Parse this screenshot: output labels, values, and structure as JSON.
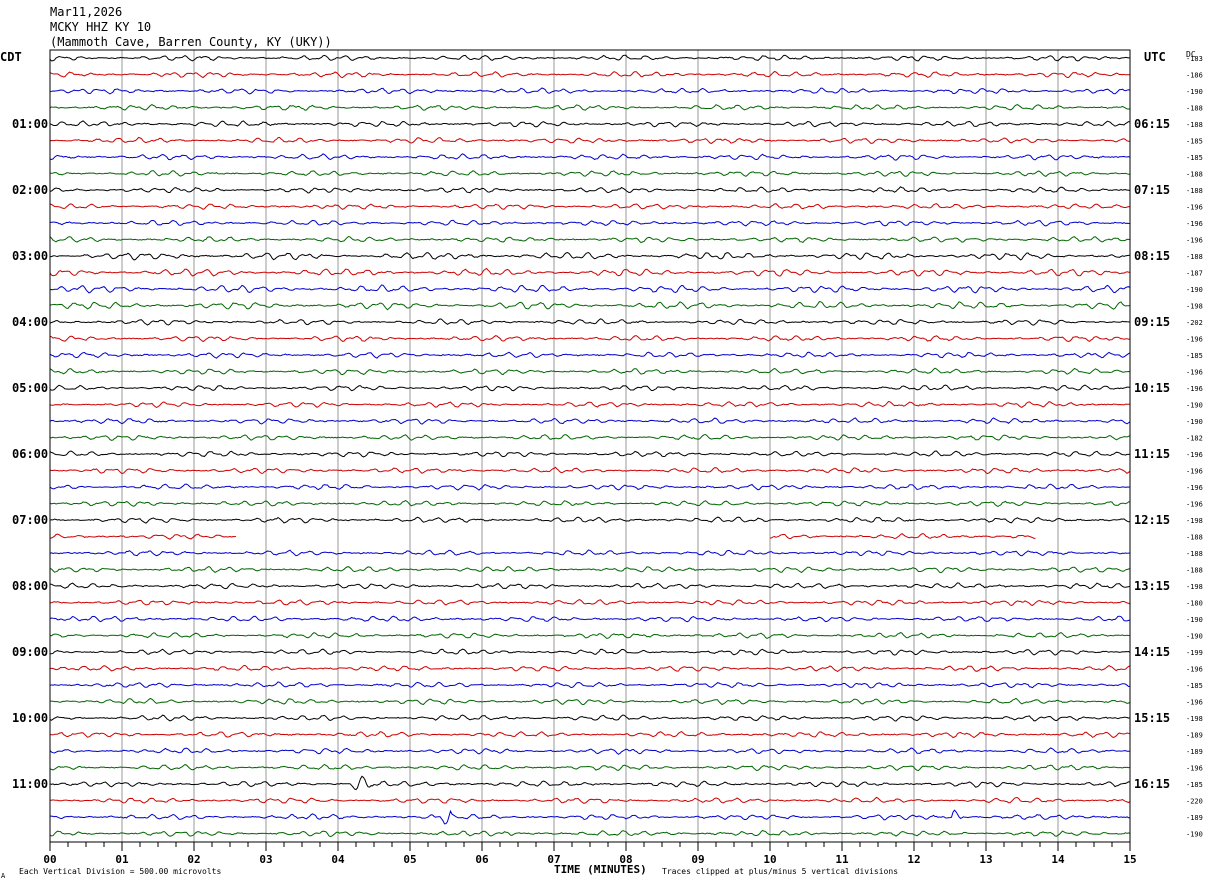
{
  "header": {
    "date": "Mar11,2026",
    "station": "MCKY HHZ KY 10",
    "location": "(Mammoth Cave, Barren County, KY (UKY))"
  },
  "left_tz": "CDT",
  "right_tz": "UTC",
  "dc_label": "DC",
  "footer": {
    "scale": "Each Vertical Division =  500.00 microvolts",
    "xlabel": "TIME (MINUTES)",
    "clip_note": "Traces clipped at plus/minus 5 vertical divisions",
    "corner_mark": "A"
  },
  "colors": {
    "trace": [
      "#000000",
      "#cc0000",
      "#0000cc",
      "#006600"
    ],
    "grid": "#999999",
    "frame": "#000000"
  },
  "chart_data": {
    "type": "line",
    "title": "",
    "xlabel": "TIME (MINUTES)",
    "xlim": [
      0,
      15
    ],
    "x_ticks": [
      "00",
      "01",
      "02",
      "03",
      "04",
      "05",
      "06",
      "07",
      "08",
      "09",
      "10",
      "11",
      "12",
      "13",
      "14",
      "15"
    ],
    "traces_per_hour": 4,
    "trace_count": 48,
    "left_hour_labels": [
      "01:00",
      "02:00",
      "03:00",
      "04:00",
      "05:00",
      "06:00",
      "07:00",
      "08:00",
      "09:00",
      "10:00",
      "11:00"
    ],
    "right_hour_labels": [
      "06:15",
      "07:15",
      "08:15",
      "09:15",
      "10:15",
      "11:15",
      "12:15",
      "13:15",
      "14:15",
      "15:15",
      "16:15"
    ],
    "dc_values": [
      "-183",
      "-186",
      "-190",
      "-188",
      "-188",
      "-185",
      "-185",
      "-188",
      "-188",
      "-196",
      "-196",
      "-196",
      "-188",
      "-187",
      "-190",
      "-198",
      "-202",
      "-196",
      "-185",
      "-196",
      "-196",
      "-190",
      "-190",
      "-182",
      "-196",
      "-196",
      "-196",
      "-196",
      "-198",
      "-188",
      "-188",
      "-188",
      "-198",
      "-180",
      "-190",
      "-190",
      "-199",
      "-196",
      "-185",
      "-196",
      "-198",
      "-189",
      "-189",
      "-196",
      "-185",
      "-220",
      "-189",
      "-190"
    ],
    "gaps": [
      {
        "trace": 29,
        "x_start": 2.6,
        "x_end": 10.0
      },
      {
        "trace": 29,
        "x_start": 13.7,
        "x_end": 15.0
      }
    ],
    "events": [
      {
        "trace": 44,
        "x": 4.2,
        "x_end": 4.4
      },
      {
        "trace": 46,
        "x": 5.45,
        "x_end": 5.5
      },
      {
        "trace": 46,
        "x": 12.55,
        "x_end": 12.6
      }
    ]
  }
}
